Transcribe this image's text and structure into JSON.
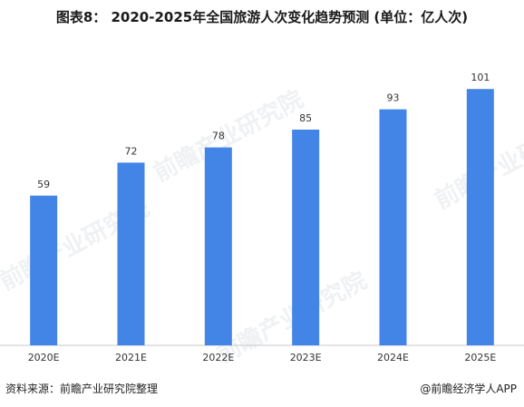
{
  "title": "图表8： 2020-2025年全国旅游人次变化趋势预测 (单位：亿人次)",
  "watermark": "前瞻产业研究院",
  "footer": {
    "source": "资料来源：前瞻产业研究院整理",
    "brand": "@前瞻经济学人APP"
  },
  "colors": {
    "bar": "#4385e6",
    "axis": "#c8c8c8",
    "label": "#333333"
  },
  "chart_data": {
    "type": "bar",
    "title": "图表8： 2020-2025年全国旅游人次变化趋势预测 (单位：亿人次)",
    "categories": [
      "2020E",
      "2021E",
      "2022E",
      "2023E",
      "2024E",
      "2025E"
    ],
    "values": [
      59,
      72,
      78,
      85,
      93,
      101
    ],
    "data_labels": [
      "59",
      "72",
      "78",
      "85",
      "93",
      "101"
    ],
    "xlabel": "",
    "ylabel": "",
    "ylim": [
      0,
      110
    ],
    "grid": false,
    "legend": "none"
  }
}
